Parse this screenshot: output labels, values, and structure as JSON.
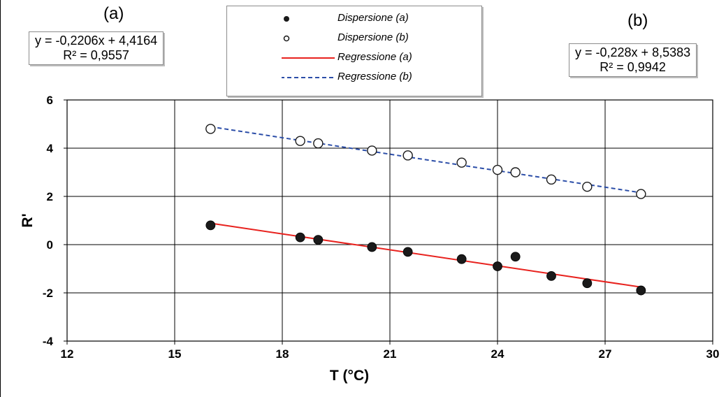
{
  "panel_labels": {
    "a": "(a)",
    "b": "(b)"
  },
  "equations": {
    "a": {
      "eq": "y = -0,2206x + 4,4164",
      "r2": "R² = 0,9557"
    },
    "b": {
      "eq": "y = -0,228x + 8,5383",
      "r2": "R² = 0,9942"
    }
  },
  "legend": [
    {
      "label": "Dispersione (a)",
      "symbol": "filled-circle"
    },
    {
      "label": "Dispersione (b)",
      "symbol": "open-circle"
    },
    {
      "label": "Regressione (a)",
      "symbol": "solid-line"
    },
    {
      "label": "Regressione (b)",
      "symbol": "dashed-line"
    }
  ],
  "colors": {
    "regression_a": "#e8221e",
    "regression_b": "#2c4ea8",
    "markers": "#1a1a1a",
    "grid": "#000000"
  },
  "chart_data": {
    "type": "scatter",
    "xlabel": "T (°C)",
    "ylabel": "R'",
    "xlim": [
      12,
      30
    ],
    "ylim": [
      -4,
      6
    ],
    "xticks": [
      12,
      15,
      18,
      21,
      24,
      27,
      30
    ],
    "yticks": [
      -4,
      -2,
      0,
      2,
      4,
      6
    ],
    "grid": true,
    "legend_position": "top-center",
    "series": [
      {
        "name": "Dispersione (a)",
        "marker": "filled",
        "x": [
          16,
          18.5,
          19,
          20.5,
          21.5,
          23,
          24,
          24.5,
          25.5,
          26.5,
          28
        ],
        "y": [
          0.8,
          0.3,
          0.2,
          -0.1,
          -0.3,
          -0.6,
          -0.9,
          -0.5,
          -1.3,
          -1.6,
          -1.9
        ]
      },
      {
        "name": "Dispersione (b)",
        "marker": "open",
        "x": [
          16,
          18.5,
          19,
          20.5,
          21.5,
          23,
          24,
          24.5,
          25.5,
          26.5,
          28
        ],
        "y": [
          4.8,
          4.3,
          4.2,
          3.9,
          3.7,
          3.4,
          3.1,
          3.0,
          2.7,
          2.4,
          2.1
        ]
      },
      {
        "name": "Regressione (a)",
        "line": "solid",
        "slope": -0.2206,
        "intercept": 4.4164,
        "x_range": [
          16,
          28
        ]
      },
      {
        "name": "Regressione (b)",
        "line": "dashed",
        "slope": -0.228,
        "intercept": 8.5383,
        "x_range": [
          16,
          28
        ]
      }
    ]
  }
}
